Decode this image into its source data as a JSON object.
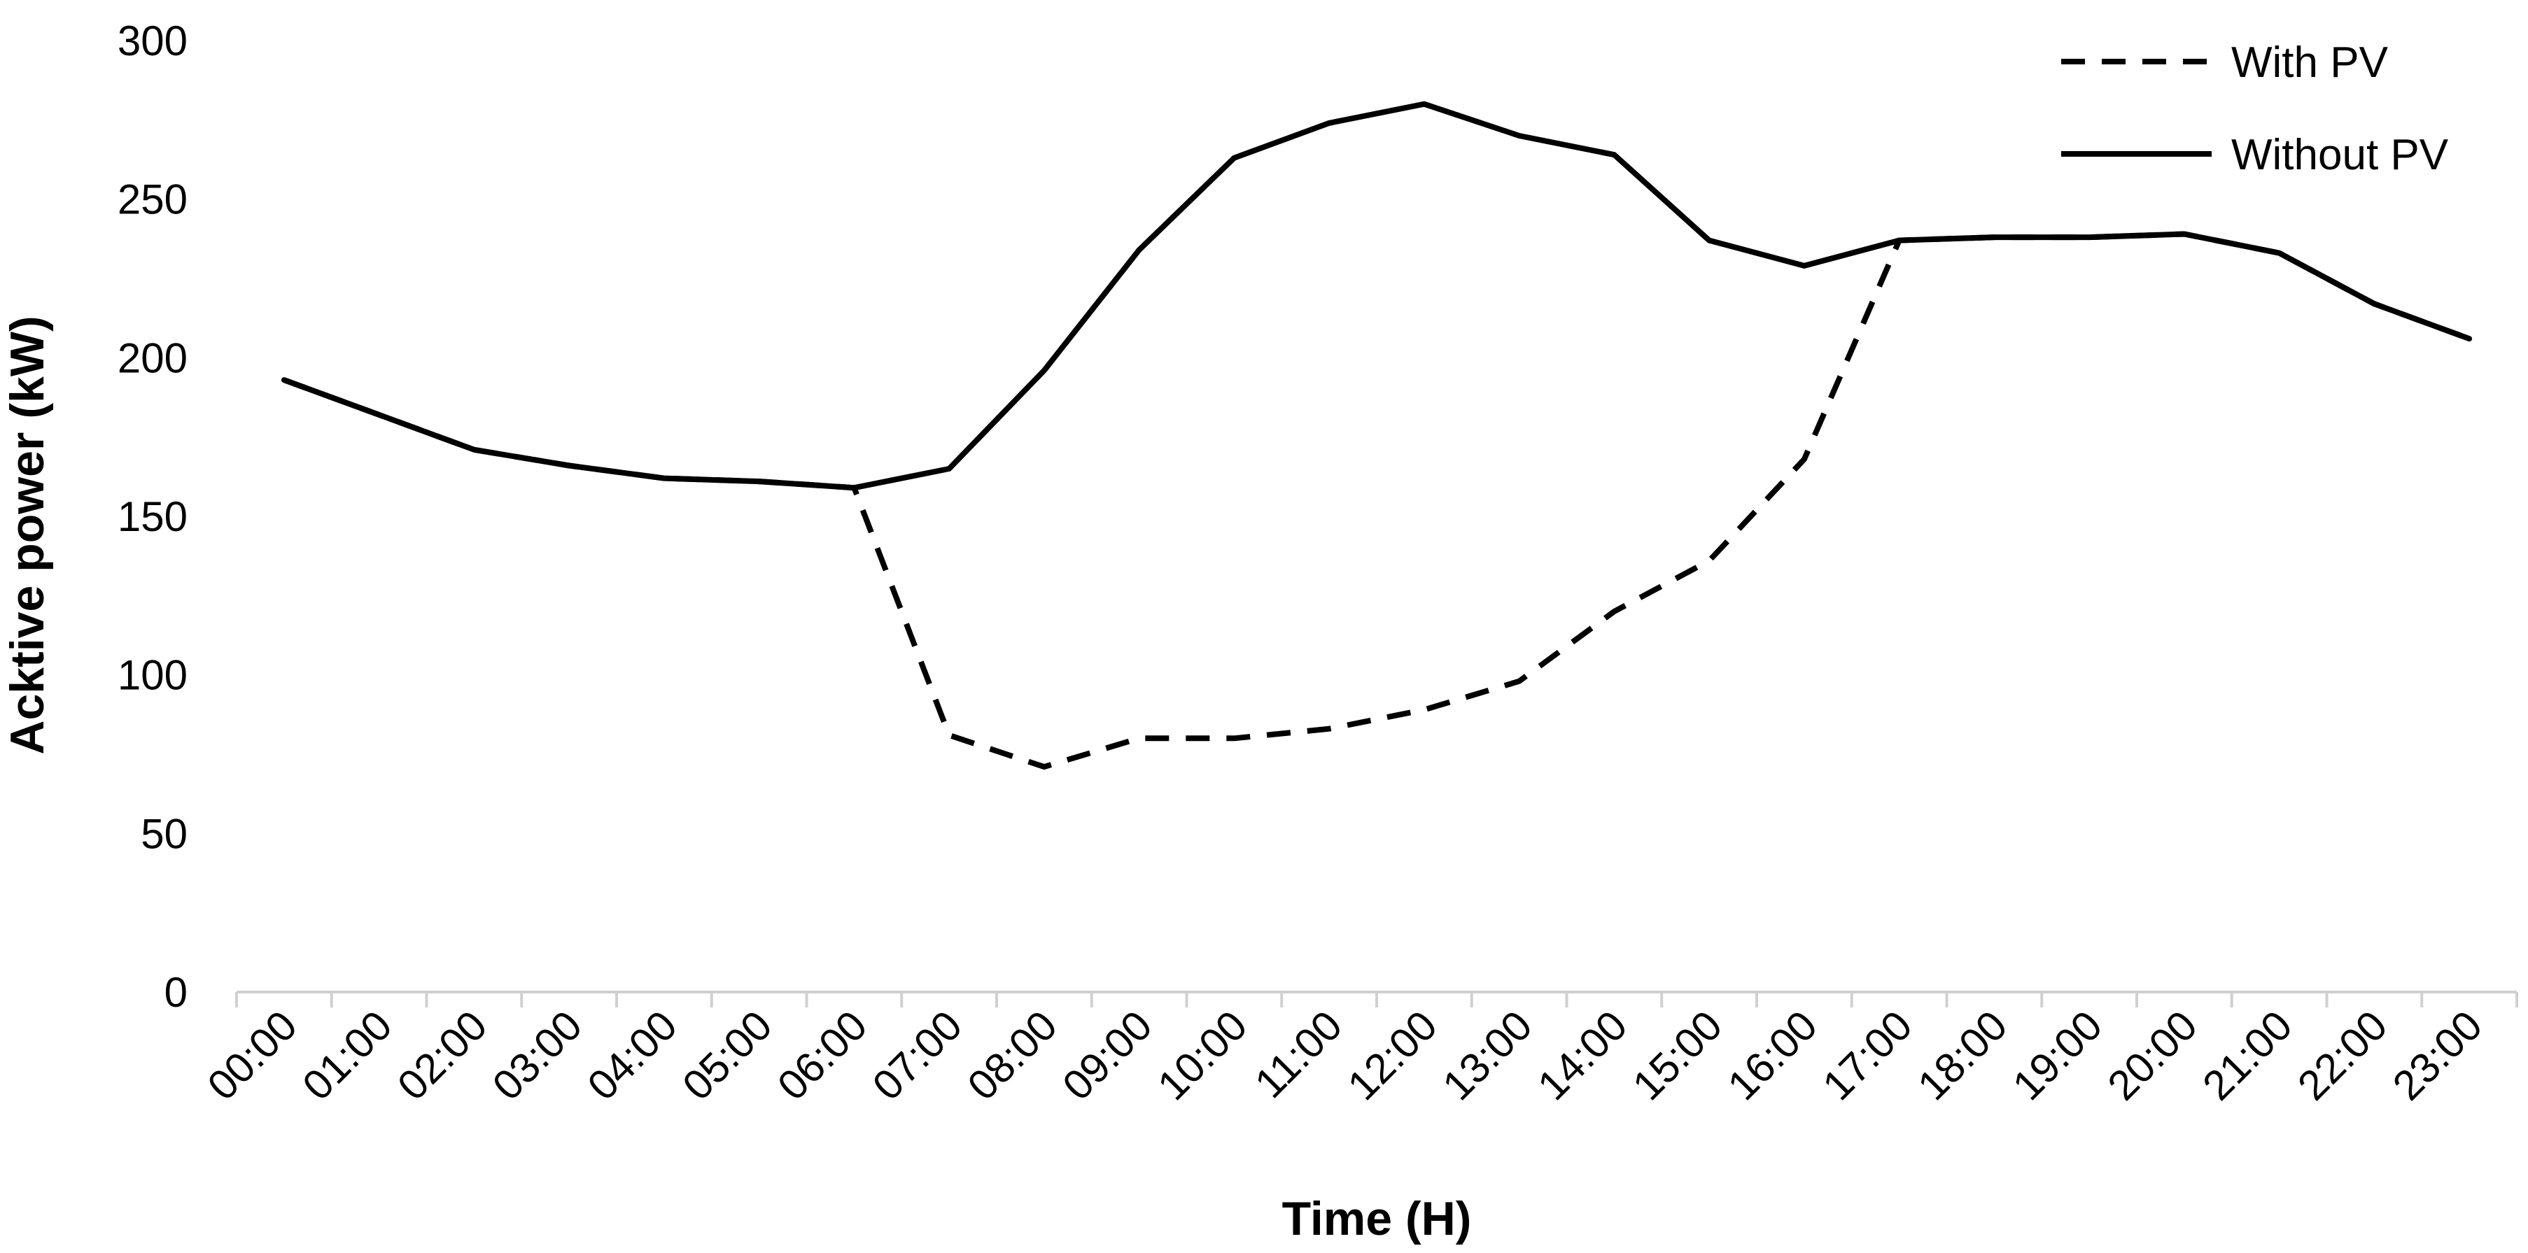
{
  "chart_data": {
    "type": "line",
    "title": "",
    "xlabel": "Time (H)",
    "ylabel": "Acktive power (kW)",
    "ylim": [
      0,
      300
    ],
    "yticks": [
      0,
      50,
      100,
      150,
      200,
      250,
      300
    ],
    "grid": false,
    "legend_position": "top-right",
    "categories": [
      "00:00",
      "01:00",
      "02:00",
      "03:00",
      "04:00",
      "05:00",
      "06:00",
      "07:00",
      "08:00",
      "09:00",
      "10:00",
      "11:00",
      "12:00",
      "13:00",
      "14:00",
      "15:00",
      "16:00",
      "17:00",
      "18:00",
      "19:00",
      "20:00",
      "21:00",
      "22:00",
      "23:00"
    ],
    "series": [
      {
        "name": "With PV",
        "style": "dashed",
        "color": "#000000",
        "values": [
          193,
          182,
          171,
          166,
          162,
          161,
          159,
          81,
          71,
          80,
          80,
          83,
          89,
          98,
          120,
          136,
          168,
          237,
          238,
          238,
          239,
          233,
          217,
          206
        ]
      },
      {
        "name": "Without PV",
        "style": "solid",
        "color": "#000000",
        "values": [
          193,
          182,
          171,
          166,
          162,
          161,
          159,
          165,
          196,
          234,
          263,
          274,
          280,
          270,
          264,
          237,
          229,
          237,
          238,
          238,
          239,
          233,
          217,
          206
        ]
      }
    ]
  }
}
